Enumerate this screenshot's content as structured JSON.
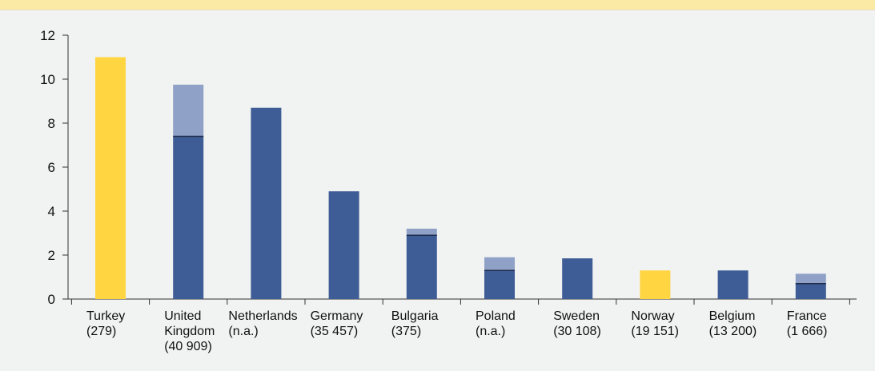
{
  "chart_data": {
    "type": "bar",
    "stacked": true,
    "categories": [
      [
        "Turkey",
        "(279)"
      ],
      [
        "United",
        "Kingdom",
        "(40 909)"
      ],
      [
        "Netherlands",
        "(n.a.)"
      ],
      [
        "Germany",
        "(35 457)"
      ],
      [
        "Bulgaria",
        "(375)"
      ],
      [
        "Poland",
        "(n.a.)"
      ],
      [
        "Sweden",
        "(30 108)"
      ],
      [
        "Norway",
        "(19 151)"
      ],
      [
        "Belgium",
        "(13 200)"
      ],
      [
        "France",
        "(1 666)"
      ]
    ],
    "series": [
      {
        "values": [
          11.0,
          7.4,
          8.7,
          4.9,
          2.9,
          1.3,
          1.85,
          1.3,
          1.3,
          0.7
        ]
      },
      {
        "values": [
          0,
          2.35,
          0,
          0,
          0.3,
          0.6,
          0,
          0,
          0,
          0.45
        ]
      }
    ],
    "highlighted_categories": [
      0,
      7
    ],
    "ylim": [
      0,
      12
    ],
    "yticks": [
      "0",
      "2",
      "4",
      "6",
      "8",
      "10",
      "12"
    ],
    "title": "",
    "xlabel": "",
    "ylabel": "",
    "grid": false,
    "colors": {
      "primary": "#3e5c96",
      "secondary": "#8fa1c7",
      "highlight": "#ffd541",
      "axis": "#333333",
      "background": "#f1f2f2",
      "top_band": "#fbe9a6"
    }
  }
}
